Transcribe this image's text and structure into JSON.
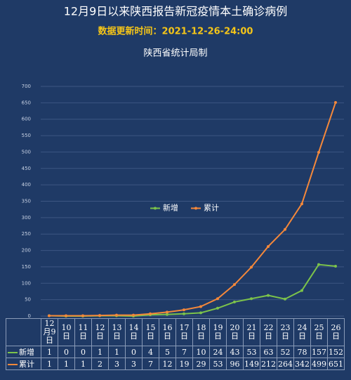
{
  "chart_data": {
    "type": "line",
    "title": "12月9日以来陕西报告新冠疫情本土确诊病例",
    "subtitle": "数据更新时间：2021-12-26-24:00",
    "source": "陕西省统计局制",
    "categories": [
      "12月9日",
      "10日",
      "11日",
      "12日",
      "13日",
      "14日",
      "15日",
      "16日",
      "17日",
      "18日",
      "19日",
      "20日",
      "21日",
      "22日",
      "23日",
      "24日",
      "25日",
      "26日"
    ],
    "series": [
      {
        "name": "新增",
        "color": "#7cc34a",
        "values": [
          1,
          0,
          0,
          1,
          1,
          0,
          4,
          5,
          7,
          10,
          24,
          43,
          53,
          63,
          52,
          78,
          157,
          152
        ]
      },
      {
        "name": "累计",
        "color": "#f5883a",
        "values": [
          1,
          1,
          1,
          2,
          3,
          3,
          7,
          12,
          19,
          29,
          53,
          96,
          149,
          212,
          264,
          342,
          499,
          651
        ]
      }
    ],
    "ylim": [
      0,
      700
    ],
    "yticks": [
      0,
      50,
      100,
      150,
      200,
      250,
      300,
      350,
      400,
      450,
      500,
      550,
      600,
      650,
      700
    ],
    "grid": true,
    "legend": "center"
  }
}
